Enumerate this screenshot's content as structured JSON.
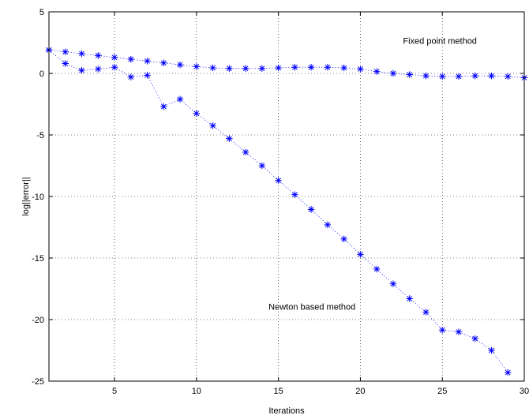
{
  "chart_data": {
    "type": "line",
    "title": "",
    "xlabel": "Iterations",
    "ylabel": "log||error||",
    "xlim": [
      1,
      30
    ],
    "ylim": [
      -25,
      5
    ],
    "xticks": [
      5,
      10,
      15,
      20,
      25,
      30
    ],
    "yticks": [
      5,
      0,
      -5,
      -10,
      -15,
      -20,
      -25
    ],
    "grid": true,
    "marker": "*",
    "line_style": "dotted",
    "color": "#0000ff",
    "annotations": [
      {
        "text": "Fixed point method",
        "x": 22.6,
        "y": 2.4
      },
      {
        "text": "Newton based method",
        "x": 14.4,
        "y": -19.2
      }
    ],
    "series": [
      {
        "name": "Fixed point method",
        "x": [
          1,
          2,
          3,
          4,
          5,
          6,
          7,
          8,
          9,
          10,
          11,
          12,
          13,
          14,
          15,
          16,
          17,
          18,
          19,
          20,
          21,
          22,
          23,
          24,
          25,
          26,
          27,
          28,
          29,
          30
        ],
        "y": [
          1.9,
          1.75,
          1.6,
          1.45,
          1.3,
          1.15,
          1.0,
          0.85,
          0.7,
          0.55,
          0.45,
          0.4,
          0.4,
          0.4,
          0.45,
          0.5,
          0.5,
          0.5,
          0.45,
          0.35,
          0.15,
          0.0,
          -0.1,
          -0.2,
          -0.25,
          -0.25,
          -0.2,
          -0.2,
          -0.25,
          -0.35
        ]
      },
      {
        "name": "Newton based method",
        "x": [
          1,
          2,
          3,
          4,
          5,
          6,
          7,
          8,
          9,
          10,
          11,
          12,
          13,
          14,
          15,
          16,
          17,
          18,
          19,
          20,
          21,
          22,
          23,
          24,
          25,
          26,
          27,
          28,
          29
        ],
        "y": [
          1.9,
          0.8,
          0.25,
          0.35,
          0.5,
          -0.3,
          -0.15,
          -2.7,
          -2.1,
          -3.25,
          -4.25,
          -5.3,
          -6.4,
          -7.5,
          -8.7,
          -9.85,
          -11.05,
          -12.3,
          -13.45,
          -14.7,
          -15.9,
          -17.1,
          -18.3,
          -19.4,
          -20.85,
          -21.0,
          -21.55,
          -22.5,
          -24.3
        ]
      }
    ]
  }
}
